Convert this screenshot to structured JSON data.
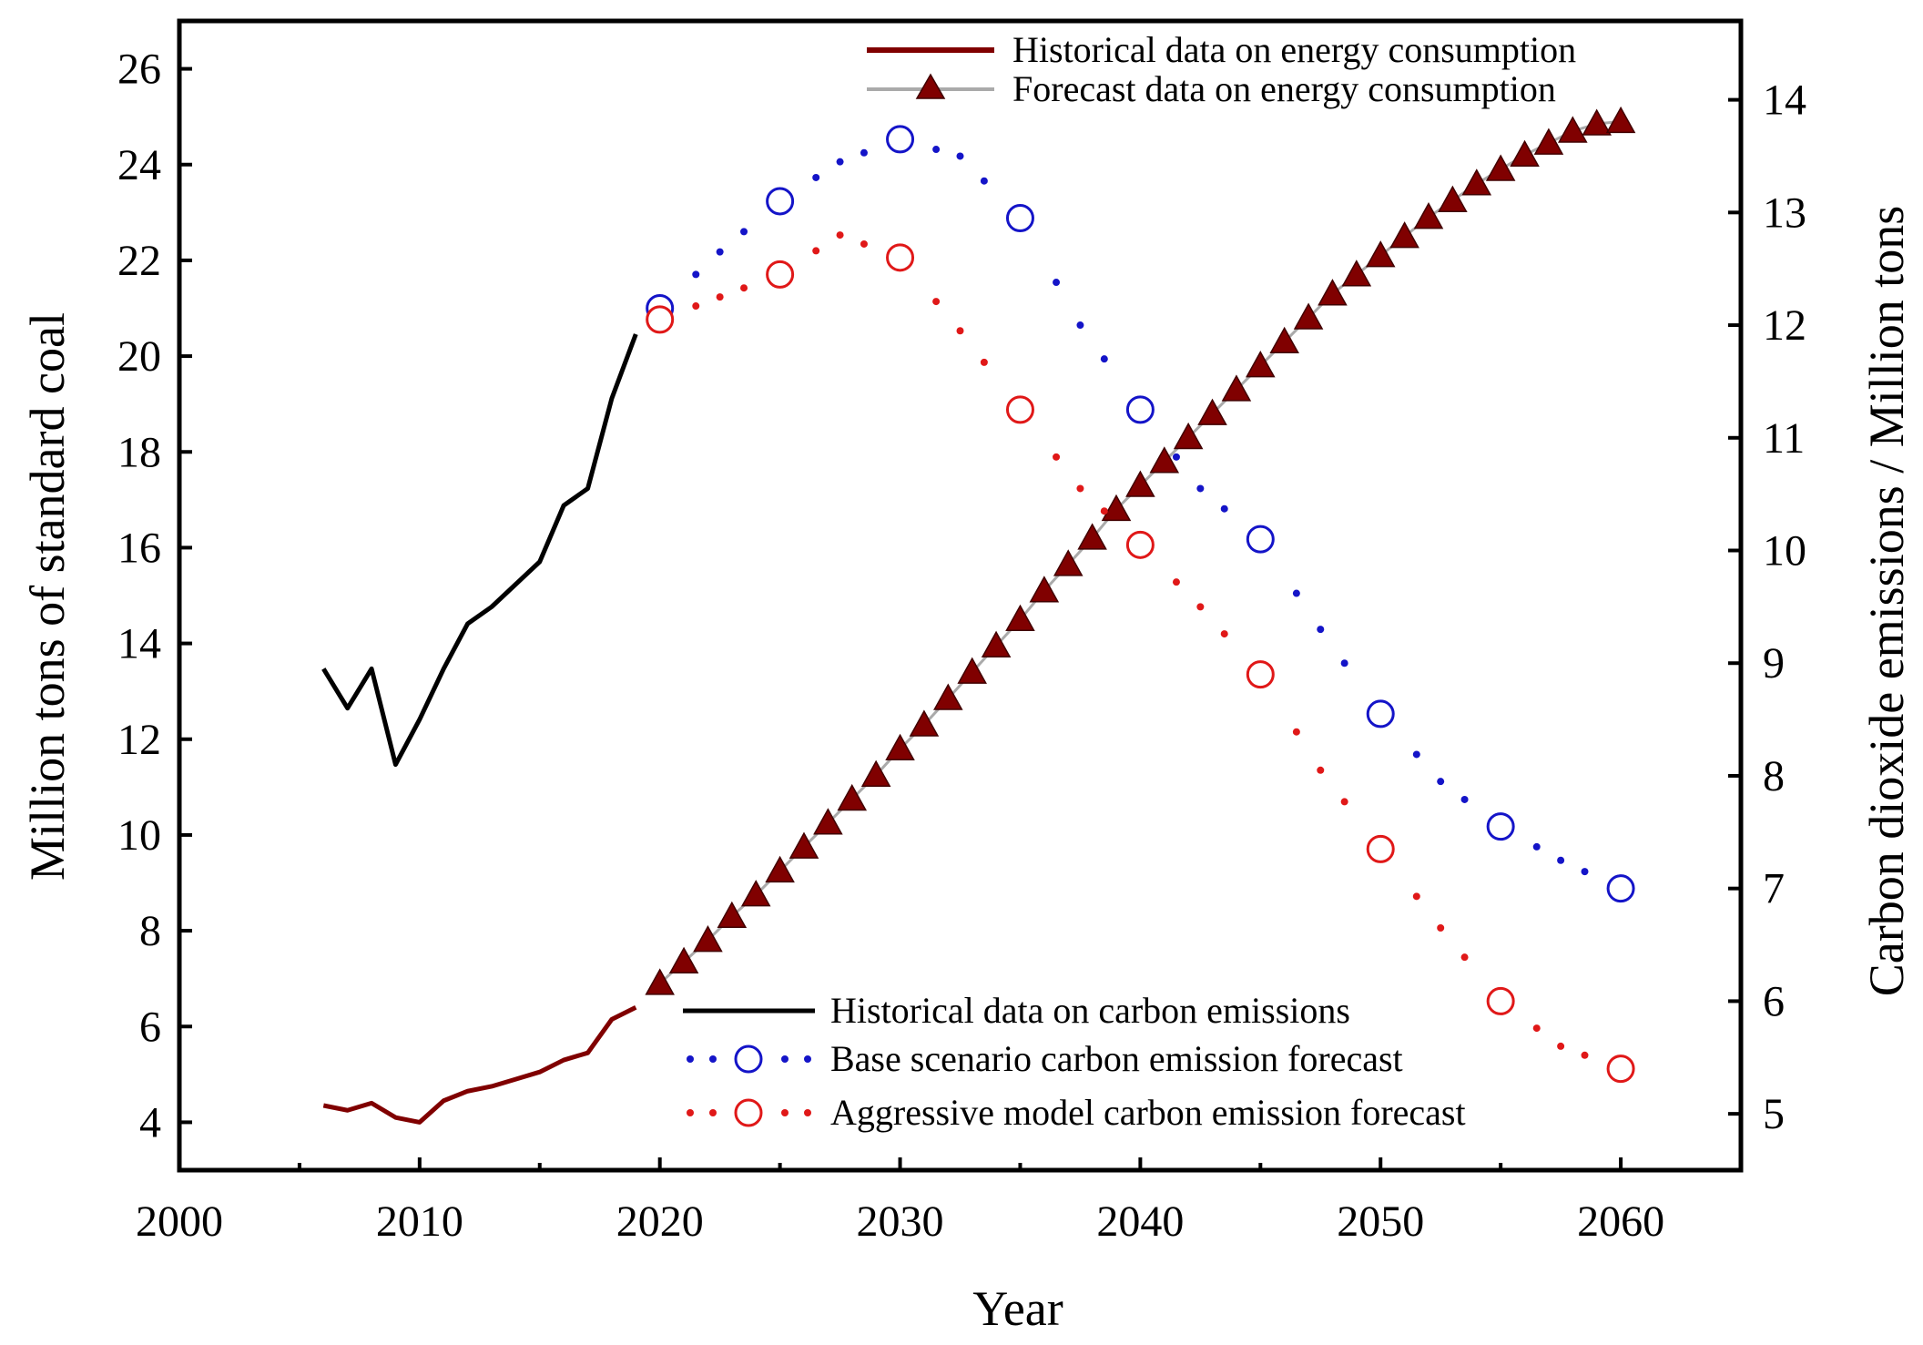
{
  "chart_data": {
    "type": "line",
    "xlabel": "Year",
    "ylabel_left": "Million tons of standard coal",
    "ylabel_right": "Carbon dioxide emissions / Million tons",
    "xlim": [
      2000,
      2065
    ],
    "ylim_left": [
      3,
      27
    ],
    "ylim_right": [
      4.5,
      14.7
    ],
    "x_ticks": [
      2000,
      2010,
      2020,
      2030,
      2040,
      2050,
      2060
    ],
    "y_ticks_left": [
      4,
      6,
      8,
      10,
      12,
      14,
      16,
      18,
      20,
      22,
      24,
      26
    ],
    "y_ticks_right": [
      5,
      6,
      7,
      8,
      9,
      10,
      11,
      12,
      13,
      14
    ],
    "grid": false,
    "series": [
      {
        "name": "Historical data on energy consumption",
        "axis": "left",
        "style": "solid",
        "color": "#800000",
        "x": [
          2006,
          2007,
          2008,
          2009,
          2010,
          2011,
          2012,
          2013,
          2014,
          2015,
          2016,
          2017,
          2018,
          2019
        ],
        "y": [
          4.35,
          4.25,
          4.4,
          4.1,
          4.0,
          4.45,
          4.65,
          4.75,
          4.9,
          5.05,
          5.3,
          5.45,
          6.15,
          6.4
        ]
      },
      {
        "name": "Forecast data on energy consumption",
        "axis": "left",
        "style": "line-triangles",
        "color": "#800000",
        "line_color": "#aaaaaa",
        "x": [
          2020,
          2021,
          2022,
          2023,
          2024,
          2025,
          2026,
          2027,
          2028,
          2029,
          2030,
          2031,
          2032,
          2033,
          2034,
          2035,
          2036,
          2037,
          2038,
          2039,
          2040,
          2041,
          2042,
          2043,
          2044,
          2045,
          2046,
          2047,
          2048,
          2049,
          2050,
          2051,
          2052,
          2053,
          2054,
          2055,
          2056,
          2057,
          2058,
          2059,
          2060
        ],
        "y": [
          6.9,
          7.35,
          7.8,
          8.3,
          8.75,
          9.25,
          9.75,
          10.25,
          10.75,
          11.25,
          11.8,
          12.3,
          12.85,
          13.4,
          13.95,
          14.5,
          15.1,
          15.65,
          16.2,
          16.8,
          17.3,
          17.8,
          18.3,
          18.8,
          19.3,
          19.8,
          20.3,
          20.8,
          21.3,
          21.7,
          22.1,
          22.5,
          22.9,
          23.25,
          23.6,
          23.9,
          24.2,
          24.45,
          24.7,
          24.85,
          24.9
        ]
      },
      {
        "name": "Historical data on carbon emissions",
        "axis": "right",
        "style": "solid",
        "color": "#000000",
        "x": [
          2006,
          2007,
          2008,
          2009,
          2010,
          2011,
          2012,
          2013,
          2014,
          2015,
          2016,
          2017,
          2018,
          2019
        ],
        "y": [
          8.95,
          8.6,
          8.95,
          8.1,
          8.5,
          8.95,
          9.35,
          9.5,
          9.7,
          9.9,
          10.4,
          10.55,
          11.35,
          11.92
        ]
      },
      {
        "name": "Base scenario carbon emission forecast",
        "axis": "right",
        "style": "dotted-circles",
        "color": "#1414c8",
        "markers_x": [
          2020,
          2025,
          2030,
          2035,
          2040,
          2045,
          2050,
          2055,
          2060
        ],
        "x": [
          2020,
          2022.5,
          2025,
          2027.5,
          2030,
          2032.5,
          2035,
          2037.5,
          2040,
          2042.5,
          2045,
          2047.5,
          2050,
          2052.5,
          2055,
          2057.5,
          2060
        ],
        "y": [
          12.15,
          12.65,
          13.1,
          13.45,
          13.65,
          13.5,
          12.95,
          12.0,
          11.25,
          10.55,
          10.1,
          9.3,
          8.55,
          7.95,
          7.55,
          7.25,
          7.0
        ]
      },
      {
        "name": "Aggressive model carbon emission forecast",
        "axis": "right",
        "style": "dotted-circles",
        "color": "#e01818",
        "markers_x": [
          2020,
          2025,
          2030,
          2035,
          2040,
          2045,
          2050,
          2055,
          2060
        ],
        "x": [
          2020,
          2022.5,
          2025,
          2027.5,
          2030,
          2032.5,
          2035,
          2037.5,
          2040,
          2042.5,
          2045,
          2047.5,
          2050,
          2052.5,
          2055,
          2057.5,
          2060
        ],
        "y": [
          12.05,
          12.25,
          12.45,
          12.8,
          12.6,
          11.95,
          11.25,
          10.55,
          10.05,
          9.5,
          8.9,
          8.05,
          7.35,
          6.65,
          6.0,
          5.6,
          5.4
        ]
      }
    ],
    "legend_top": [
      "Historical data on energy consumption",
      "Forecast data on energy consumption"
    ],
    "legend_bottom": [
      "Historical data on carbon emissions",
      "Base scenario carbon emission forecast",
      "Aggressive model carbon emission forecast"
    ],
    "legend_top_placement": "top-right",
    "legend_bottom_placement": "bottom-center"
  }
}
